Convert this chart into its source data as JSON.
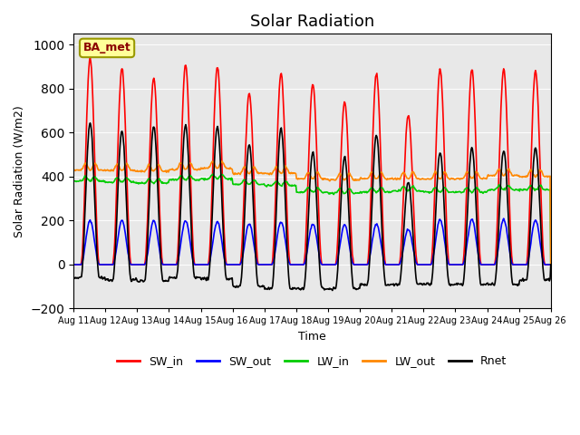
{
  "title": "Solar Radiation",
  "ylabel": "Solar Radiation (W/m2)",
  "xlabel": "Time",
  "ylim": [
    -200,
    1050
  ],
  "yticks": [
    -200,
    0,
    200,
    400,
    600,
    800,
    1000
  ],
  "background_color": "#e8e8e8",
  "legend_label": "BA_met",
  "legend_label_color": "#8B0000",
  "legend_label_bg": "#ffff99",
  "series": {
    "SW_in": {
      "color": "#ff0000",
      "lw": 1.2
    },
    "SW_out": {
      "color": "#0000ff",
      "lw": 1.2
    },
    "LW_in": {
      "color": "#00cc00",
      "lw": 1.2
    },
    "LW_out": {
      "color": "#ff8800",
      "lw": 1.2
    },
    "Rnet": {
      "color": "#000000",
      "lw": 1.2
    }
  },
  "xtick_labels": [
    "Aug 11",
    "Aug 12",
    "Aug 13",
    "Aug 14",
    "Aug 15",
    "Aug 16",
    "Aug 17",
    "Aug 18",
    "Aug 19",
    "Aug 20",
    "Aug 21",
    "Aug 22",
    "Aug 23",
    "Aug 24",
    "Aug 25",
    "Aug 26"
  ],
  "n_days": 15,
  "points_per_day": 48,
  "SW_in_peaks": [
    940,
    895,
    850,
    910,
    900,
    780,
    870,
    820,
    740,
    870,
    680,
    890,
    890,
    890,
    880
  ],
  "SW_out_peaks": [
    200,
    200,
    200,
    200,
    195,
    185,
    195,
    185,
    180,
    185,
    160,
    205,
    205,
    205,
    200
  ],
  "LW_in_base": [
    380,
    375,
    370,
    385,
    390,
    365,
    360,
    330,
    325,
    330,
    335,
    330,
    330,
    340,
    340
  ],
  "LW_out_base": [
    430,
    428,
    425,
    432,
    438,
    415,
    415,
    390,
    385,
    390,
    390,
    390,
    392,
    405,
    400
  ],
  "Rnet_peaks": [
    645,
    610,
    630,
    635,
    630,
    545,
    620,
    510,
    490,
    590,
    375,
    510,
    530,
    520,
    530
  ],
  "Rnet_night": [
    -60,
    -70,
    -75,
    -60,
    -65,
    -100,
    -110,
    -110,
    -110,
    -90,
    -90,
    -90,
    -90,
    -90,
    -70
  ]
}
